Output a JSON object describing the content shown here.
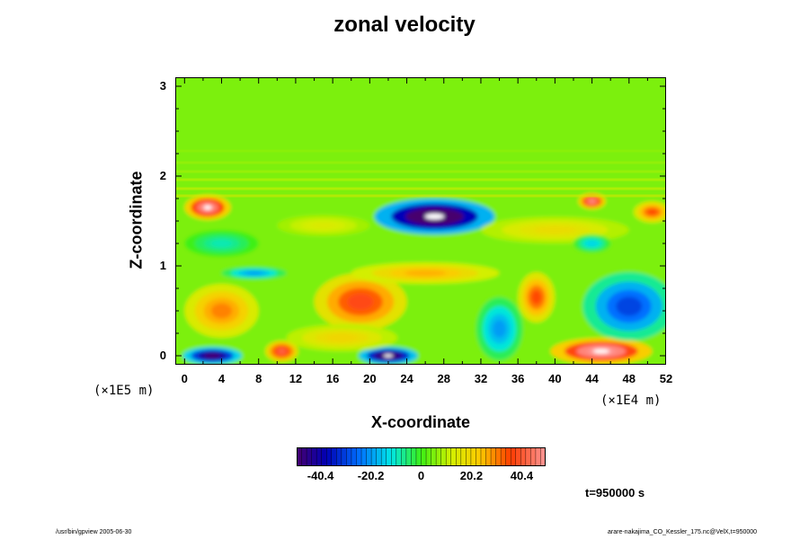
{
  "chart_data": {
    "type": "heatmap",
    "title": "zonal velocity",
    "xlabel": "X-coordinate",
    "ylabel": "Z-coordinate",
    "x_unit": "(×1E4 m)",
    "y_unit": "(×1E5 m)",
    "xlim": [
      -1,
      52
    ],
    "ylim": [
      -0.1,
      3.1
    ],
    "x_ticks": [
      0,
      4,
      8,
      12,
      16,
      20,
      24,
      28,
      32,
      36,
      40,
      44,
      48,
      52
    ],
    "y_ticks": [
      0,
      1,
      2,
      3
    ],
    "colorbar": {
      "range": [
        -50,
        50
      ],
      "ticks": [
        -40.4,
        -20.2,
        0,
        20.2,
        40.4
      ],
      "tick_labels": [
        "-40.4",
        "-20.2",
        "0",
        "20.2",
        "40.4"
      ]
    },
    "background_value": 5,
    "features": [
      {
        "x": 27,
        "z": 1.55,
        "rx": 6.5,
        "rz": 0.2,
        "value": -60
      },
      {
        "x": 22,
        "z": 0.0,
        "rx": 3.2,
        "rz": 0.1,
        "value": -55
      },
      {
        "x": 3,
        "z": 0.0,
        "rx": 3.2,
        "rz": 0.1,
        "value": -50
      },
      {
        "x": 45,
        "z": 0.05,
        "rx": 5.5,
        "rz": 0.15,
        "value": 55
      },
      {
        "x": 10.5,
        "z": 0.05,
        "rx": 1.8,
        "rz": 0.12,
        "value": 42
      },
      {
        "x": 2.5,
        "z": 1.65,
        "rx": 2.5,
        "rz": 0.14,
        "value": 52
      },
      {
        "x": 44,
        "z": 1.72,
        "rx": 1.5,
        "rz": 0.09,
        "value": 48
      },
      {
        "x": 19,
        "z": 0.6,
        "rx": 5.0,
        "rz": 0.32,
        "value": 38
      },
      {
        "x": 38,
        "z": 0.65,
        "rx": 2.0,
        "rz": 0.28,
        "value": 35
      },
      {
        "x": 48,
        "z": 0.55,
        "rx": 5.0,
        "rz": 0.38,
        "value": -30
      },
      {
        "x": 4,
        "z": 0.5,
        "rx": 4.0,
        "rz": 0.3,
        "value": 30
      },
      {
        "x": 7.5,
        "z": 0.92,
        "rx": 3.5,
        "rz": 0.07,
        "value": -20
      },
      {
        "x": 50.5,
        "z": 1.6,
        "rx": 2.0,
        "rz": 0.12,
        "value": 35
      },
      {
        "x": 26,
        "z": 0.92,
        "rx": 8.0,
        "rz": 0.12,
        "value": 26
      },
      {
        "x": 40,
        "z": 1.4,
        "rx": 8.0,
        "rz": 0.15,
        "value": 18
      },
      {
        "x": 15,
        "z": 1.45,
        "rx": 5.0,
        "rz": 0.12,
        "value": 14
      },
      {
        "x": 44,
        "z": 1.25,
        "rx": 2.0,
        "rz": 0.1,
        "value": -14
      },
      {
        "x": 34,
        "z": 0.3,
        "rx": 2.5,
        "rz": 0.35,
        "value": -20
      },
      {
        "x": 17,
        "z": 0.2,
        "rx": 6.0,
        "rz": 0.15,
        "value": 20
      },
      {
        "x": 4,
        "z": 1.25,
        "rx": 4.0,
        "rz": 0.15,
        "value": -9
      }
    ],
    "time_label": "t=950000 s"
  },
  "footer": {
    "left": "/usr/bin/gpview 2005-06-30",
    "right": "arare-nakajima_CO_Kessler_175.nc@VelX,t=950000"
  },
  "colors": {
    "missing_value": "#ffffff",
    "frame": "#000000"
  }
}
